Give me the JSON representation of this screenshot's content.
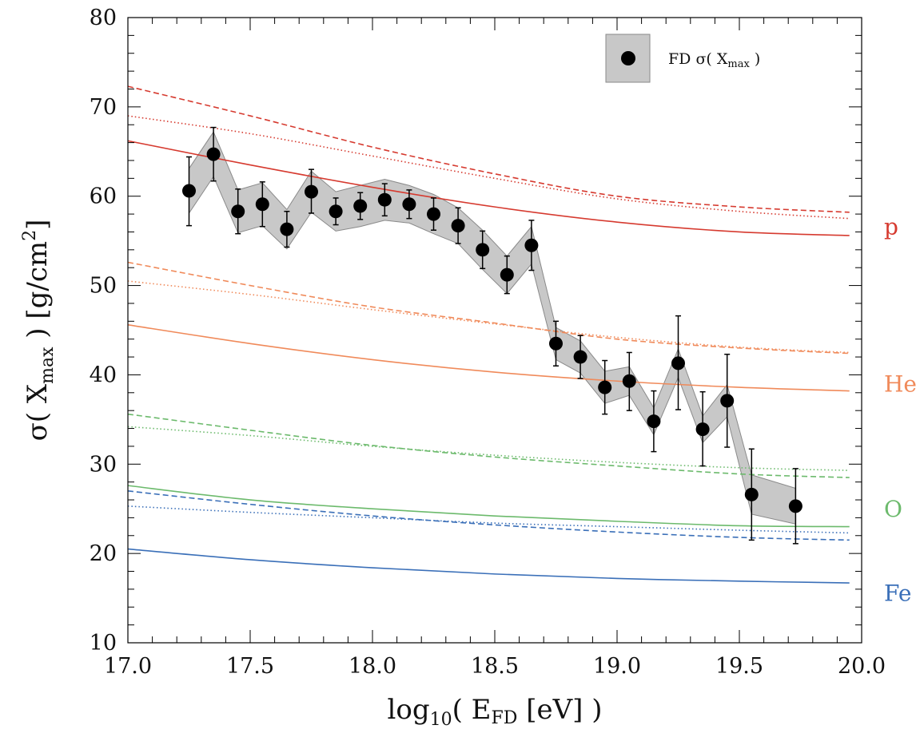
{
  "chart_data": {
    "type": "line",
    "title": "",
    "xlabel": {
      "prefix": "log",
      "sub": "10",
      "open": "( E",
      "sub2": "FD",
      "close": " [eV] )"
    },
    "ylabel": {
      "prefix": "σ( X",
      "sub": "max",
      "close": " )  [g/cm",
      "sup": "2",
      "end": "]"
    },
    "xlim": [
      17.0,
      20.0
    ],
    "ylim": [
      10,
      80
    ],
    "x_ticks": [
      "17.0",
      "17.5",
      "18.0",
      "18.5",
      "19.0",
      "19.5",
      "20.0"
    ],
    "y_ticks": [
      "10",
      "20",
      "30",
      "40",
      "50",
      "60",
      "70",
      "80"
    ],
    "legend": {
      "position": "top-right",
      "label_prefix": "FD  σ( X",
      "label_sub": "max",
      "label_suffix": " )"
    },
    "data": {
      "x": [
        17.25,
        17.35,
        17.45,
        17.55,
        17.65,
        17.75,
        17.85,
        17.95,
        18.05,
        18.15,
        18.25,
        18.35,
        18.45,
        18.55,
        18.65,
        18.75,
        18.85,
        18.95,
        19.05,
        19.15,
        19.25,
        19.35,
        19.45,
        19.55,
        19.73
      ],
      "y": [
        60.6,
        64.7,
        58.3,
        59.1,
        56.3,
        60.5,
        58.3,
        58.9,
        59.6,
        59.1,
        58.0,
        56.7,
        54.0,
        51.2,
        54.5,
        43.5,
        42.0,
        38.6,
        39.3,
        34.8,
        41.3,
        33.9,
        37.1,
        26.6,
        25.3
      ],
      "err_up": [
        3.8,
        3.0,
        2.5,
        2.5,
        2.0,
        2.5,
        1.5,
        1.5,
        1.8,
        1.6,
        1.8,
        2.0,
        2.1,
        2.1,
        2.8,
        2.5,
        2.4,
        3.0,
        3.2,
        3.4,
        5.3,
        4.2,
        5.2,
        5.1,
        4.2
      ],
      "err_dn": [
        3.9,
        3.0,
        2.5,
        2.5,
        2.0,
        2.4,
        1.5,
        1.5,
        1.8,
        1.6,
        1.8,
        2.0,
        2.1,
        2.1,
        2.8,
        2.5,
        2.4,
        3.0,
        3.3,
        3.4,
        5.2,
        4.1,
        5.2,
        5.1,
        4.2
      ],
      "sys_up": [
        2.5,
        2.5,
        2.4,
        2.4,
        2.2,
        2.3,
        2.2,
        2.3,
        2.3,
        2.1,
        2.2,
        2.0,
        2.2,
        2.1,
        2.1,
        1.8,
        1.8,
        1.8,
        1.6,
        1.5,
        1.6,
        1.5,
        1.8,
        2.2,
        2.0
      ],
      "sys_dn": [
        2.5,
        2.5,
        2.4,
        2.4,
        2.2,
        2.3,
        2.2,
        2.3,
        2.3,
        2.1,
        2.2,
        2.0,
        2.2,
        2.1,
        2.1,
        1.8,
        1.8,
        1.8,
        1.6,
        1.5,
        1.6,
        1.5,
        1.8,
        2.2,
        2.0
      ]
    },
    "series": [
      {
        "species": "p",
        "style": "solid",
        "color": "#d63a2f",
        "x": [
          17.0,
          17.5,
          18.0,
          18.5,
          19.0,
          19.5,
          19.95
        ],
        "y": [
          66.2,
          63.5,
          61.0,
          58.8,
          57.1,
          56.0,
          55.6
        ]
      },
      {
        "species": "p",
        "style": "dashed",
        "color": "#d63a2f",
        "x": [
          17.0,
          17.5,
          18.0,
          18.5,
          19.0,
          19.5,
          19.95
        ],
        "y": [
          72.3,
          69.0,
          65.5,
          62.5,
          60.0,
          58.8,
          58.2
        ]
      },
      {
        "species": "p",
        "style": "dotted",
        "color": "#d63a2f",
        "x": [
          17.0,
          17.5,
          18.0,
          18.5,
          19.0,
          19.5,
          19.95
        ],
        "y": [
          69.0,
          67.0,
          64.5,
          62.0,
          59.7,
          58.3,
          57.5
        ]
      },
      {
        "species": "He",
        "style": "solid",
        "color": "#f08a5a",
        "x": [
          17.0,
          17.5,
          18.0,
          18.5,
          19.0,
          19.5,
          19.95
        ],
        "y": [
          45.6,
          43.5,
          41.7,
          40.3,
          39.3,
          38.6,
          38.2
        ]
      },
      {
        "species": "He",
        "style": "dashed",
        "color": "#f08a5a",
        "x": [
          17.0,
          17.5,
          18.0,
          18.5,
          19.0,
          19.5,
          19.95
        ],
        "y": [
          52.6,
          50.0,
          47.6,
          45.8,
          44.0,
          43.0,
          42.4
        ]
      },
      {
        "species": "He",
        "style": "dotted",
        "color": "#f08a5a",
        "x": [
          17.0,
          17.5,
          18.0,
          18.5,
          19.0,
          19.5,
          19.95
        ],
        "y": [
          50.5,
          49.0,
          47.3,
          45.7,
          44.2,
          43.1,
          42.5
        ]
      },
      {
        "species": "O",
        "style": "solid",
        "color": "#6cba6c",
        "x": [
          17.0,
          17.5,
          18.0,
          18.5,
          19.0,
          19.5,
          19.95
        ],
        "y": [
          27.6,
          26.0,
          25.0,
          24.2,
          23.6,
          23.1,
          23.0
        ]
      },
      {
        "species": "O",
        "style": "dashed",
        "color": "#6cba6c",
        "x": [
          17.0,
          17.5,
          18.0,
          18.5,
          19.0,
          19.5,
          19.95
        ],
        "y": [
          35.6,
          33.8,
          32.1,
          30.8,
          29.8,
          28.9,
          28.5
        ]
      },
      {
        "species": "O",
        "style": "dotted",
        "color": "#6cba6c",
        "x": [
          17.0,
          17.5,
          18.0,
          18.5,
          19.0,
          19.5,
          19.95
        ],
        "y": [
          34.2,
          33.2,
          32.0,
          31.0,
          30.2,
          29.6,
          29.3
        ]
      },
      {
        "species": "Fe",
        "style": "solid",
        "color": "#3a6fb8",
        "x": [
          17.0,
          17.5,
          18.0,
          18.5,
          19.0,
          19.5,
          19.95
        ],
        "y": [
          20.5,
          19.3,
          18.4,
          17.7,
          17.2,
          16.9,
          16.7
        ]
      },
      {
        "species": "Fe",
        "style": "dashed",
        "color": "#3a6fb8",
        "x": [
          17.0,
          17.5,
          18.0,
          18.5,
          19.0,
          19.5,
          19.95
        ],
        "y": [
          27.0,
          25.5,
          24.2,
          23.2,
          22.4,
          21.8,
          21.5
        ]
      },
      {
        "species": "Fe",
        "style": "dotted",
        "color": "#3a6fb8",
        "x": [
          17.0,
          17.5,
          18.0,
          18.5,
          19.0,
          19.5,
          19.95
        ],
        "y": [
          25.3,
          24.6,
          24.0,
          23.4,
          23.0,
          22.6,
          22.3
        ]
      }
    ],
    "species_labels": [
      {
        "text": "p",
        "color": "#d63a2f",
        "y": 56.6
      },
      {
        "text": "He",
        "color": "#f08a5a",
        "y": 39.0
      },
      {
        "text": "O",
        "color": "#6cba6c",
        "y": 25.0
      },
      {
        "text": "Fe",
        "color": "#3a6fb8",
        "y": 15.6
      }
    ],
    "colors": {
      "band": "#c8c8c8",
      "band_edge": "#8a8a8a",
      "marker": "#000000"
    }
  }
}
